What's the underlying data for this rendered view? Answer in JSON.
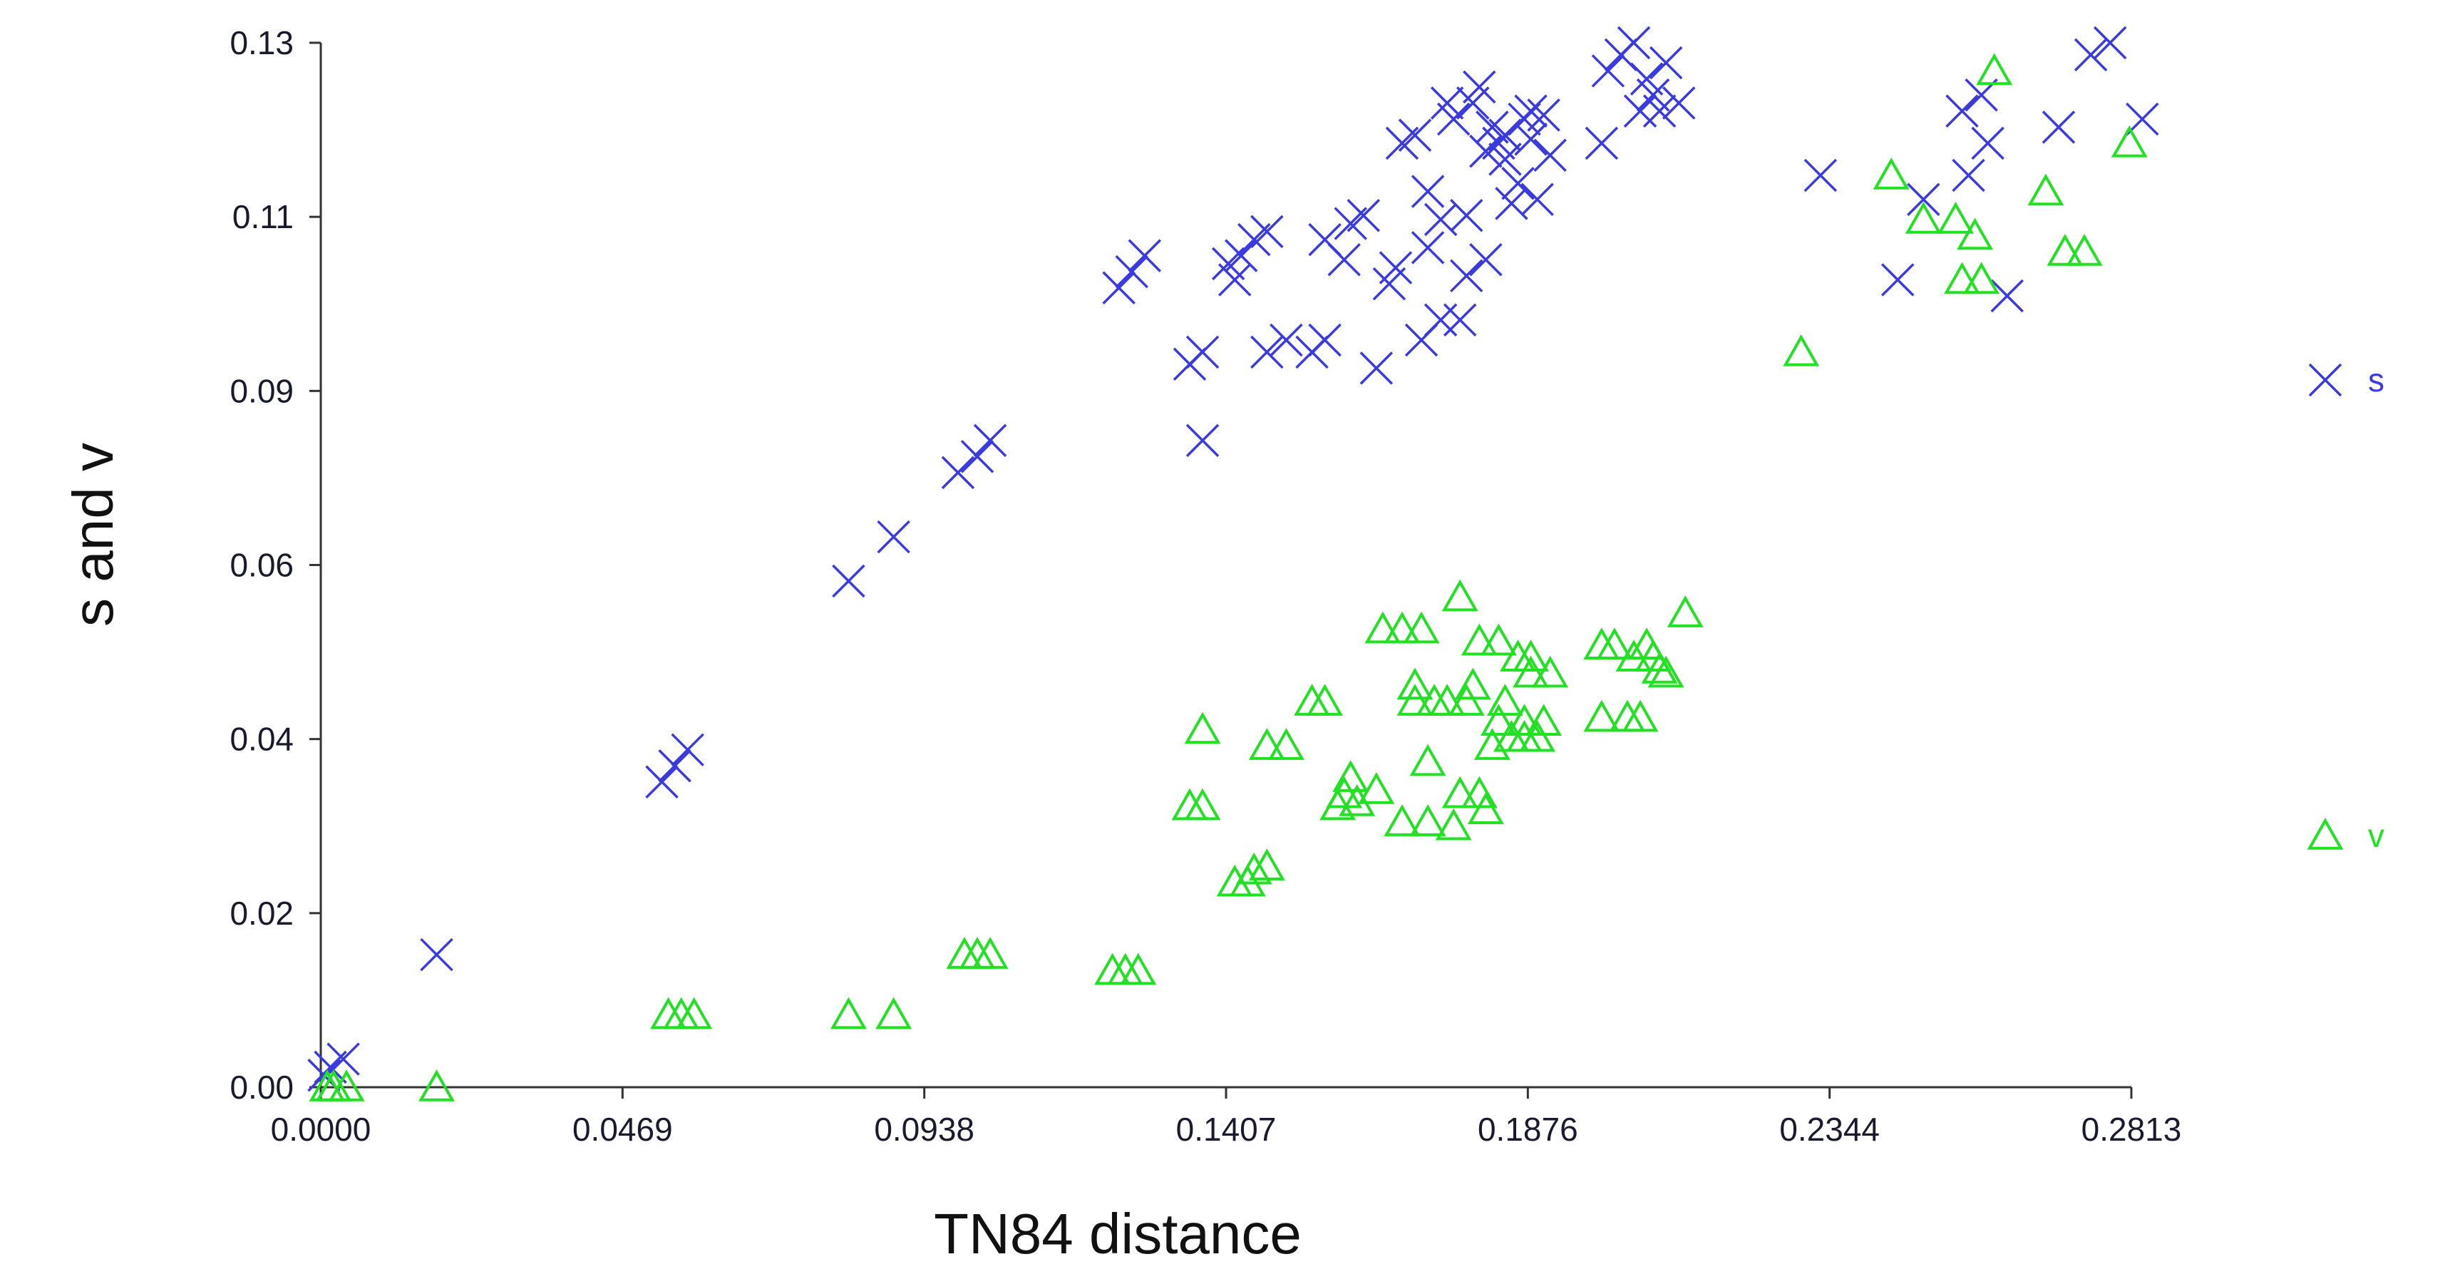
{
  "chart_data": {
    "type": "scatter",
    "title": "",
    "xlabel": "TN84 distance",
    "ylabel": "s and v",
    "xlim": [
      0,
      0.2813
    ],
    "ylim": [
      0,
      0.13
    ],
    "x_ticks": [
      "0.0000",
      "0.0469",
      "0.0938",
      "0.1407",
      "0.1876",
      "0.2344",
      "0.2813"
    ],
    "y_ticks": [
      "0.00",
      "0.02",
      "0.04",
      "0.06",
      "0.09",
      "0.11",
      "0.13"
    ],
    "grid": false,
    "legend": "right",
    "series": [
      {
        "name": "s",
        "marker": "x",
        "color": "#3a3ae0",
        "points": [
          [
            0.0005,
            0.0015
          ],
          [
            0.0015,
            0.0025
          ],
          [
            0.0035,
            0.0035
          ],
          [
            0.018,
            0.0165
          ],
          [
            0.053,
            0.038
          ],
          [
            0.055,
            0.04
          ],
          [
            0.057,
            0.042
          ],
          [
            0.082,
            0.063
          ],
          [
            0.089,
            0.0685
          ],
          [
            0.099,
            0.0765
          ],
          [
            0.102,
            0.0785
          ],
          [
            0.104,
            0.0805
          ],
          [
            0.124,
            0.0995
          ],
          [
            0.126,
            0.1015
          ],
          [
            0.128,
            0.1035
          ],
          [
            0.135,
            0.09
          ],
          [
            0.137,
            0.0915
          ],
          [
            0.137,
            0.0805
          ],
          [
            0.141,
            0.1025
          ],
          [
            0.142,
            0.1005
          ],
          [
            0.143,
            0.1035
          ],
          [
            0.145,
            0.1055
          ],
          [
            0.147,
            0.1065
          ],
          [
            0.147,
            0.0915
          ],
          [
            0.15,
            0.093
          ],
          [
            0.154,
            0.0915
          ],
          [
            0.156,
            0.093
          ],
          [
            0.156,
            0.1055
          ],
          [
            0.159,
            0.103
          ],
          [
            0.16,
            0.1075
          ],
          [
            0.162,
            0.1085
          ],
          [
            0.164,
            0.0895
          ],
          [
            0.166,
            0.1
          ],
          [
            0.167,
            0.102
          ],
          [
            0.168,
            0.1175
          ],
          [
            0.17,
            0.1185
          ],
          [
            0.171,
            0.093
          ],
          [
            0.172,
            0.1045
          ],
          [
            0.172,
            0.1115
          ],
          [
            0.174,
            0.0955
          ],
          [
            0.174,
            0.108
          ],
          [
            0.175,
            0.1225
          ],
          [
            0.176,
            0.1205
          ],
          [
            0.177,
            0.0955
          ],
          [
            0.178,
            0.101
          ],
          [
            0.178,
            0.1085
          ],
          [
            0.179,
            0.1225
          ],
          [
            0.18,
            0.1245
          ],
          [
            0.181,
            0.103
          ],
          [
            0.181,
            0.1165
          ],
          [
            0.182,
            0.1195
          ],
          [
            0.183,
            0.1175
          ],
          [
            0.184,
            0.1155
          ],
          [
            0.184,
            0.1185
          ],
          [
            0.185,
            0.11
          ],
          [
            0.186,
            0.1125
          ],
          [
            0.187,
            0.1205
          ],
          [
            0.188,
            0.118
          ],
          [
            0.188,
            0.1215
          ],
          [
            0.189,
            0.1105
          ],
          [
            0.19,
            0.121
          ],
          [
            0.191,
            0.116
          ],
          [
            0.199,
            0.1175
          ],
          [
            0.2,
            0.1265
          ],
          [
            0.202,
            0.1285
          ],
          [
            0.204,
            0.13
          ],
          [
            0.205,
            0.1215
          ],
          [
            0.206,
            0.1255
          ],
          [
            0.207,
            0.1235
          ],
          [
            0.208,
            0.1215
          ],
          [
            0.209,
            0.1275
          ],
          [
            0.211,
            0.1225
          ],
          [
            0.233,
            0.1135
          ],
          [
            0.245,
            0.1005
          ],
          [
            0.249,
            0.1105
          ],
          [
            0.255,
            0.1215
          ],
          [
            0.256,
            0.1135
          ],
          [
            0.258,
            0.1235
          ],
          [
            0.259,
            0.1175
          ],
          [
            0.262,
            0.0985
          ],
          [
            0.27,
            0.1195
          ],
          [
            0.275,
            0.1285
          ],
          [
            0.278,
            0.13
          ],
          [
            0.283,
            0.1205
          ]
        ]
      },
      {
        "name": "v",
        "marker": "triangle",
        "color": "#22e022",
        "points": [
          [
            0.001,
            0.0
          ],
          [
            0.002,
            0.0
          ],
          [
            0.004,
            0.0
          ],
          [
            0.018,
            0.0
          ],
          [
            0.054,
            0.009
          ],
          [
            0.056,
            0.009
          ],
          [
            0.058,
            0.009
          ],
          [
            0.082,
            0.009
          ],
          [
            0.089,
            0.009
          ],
          [
            0.1,
            0.0165
          ],
          [
            0.102,
            0.0165
          ],
          [
            0.104,
            0.0165
          ],
          [
            0.123,
            0.0145
          ],
          [
            0.125,
            0.0145
          ],
          [
            0.127,
            0.0145
          ],
          [
            0.135,
            0.035
          ],
          [
            0.137,
            0.035
          ],
          [
            0.137,
            0.0445
          ],
          [
            0.142,
            0.0255
          ],
          [
            0.144,
            0.0255
          ],
          [
            0.145,
            0.027
          ],
          [
            0.147,
            0.0275
          ],
          [
            0.147,
            0.0425
          ],
          [
            0.15,
            0.0425
          ],
          [
            0.154,
            0.048
          ],
          [
            0.156,
            0.048
          ],
          [
            0.158,
            0.035
          ],
          [
            0.159,
            0.0365
          ],
          [
            0.16,
            0.0385
          ],
          [
            0.161,
            0.0355
          ],
          [
            0.164,
            0.037
          ],
          [
            0.165,
            0.057
          ],
          [
            0.168,
            0.057
          ],
          [
            0.168,
            0.033
          ],
          [
            0.17,
            0.048
          ],
          [
            0.17,
            0.05
          ],
          [
            0.171,
            0.057
          ],
          [
            0.172,
            0.0405
          ],
          [
            0.172,
            0.033
          ],
          [
            0.173,
            0.048
          ],
          [
            0.175,
            0.048
          ],
          [
            0.176,
            0.0325
          ],
          [
            0.177,
            0.0365
          ],
          [
            0.177,
            0.061
          ],
          [
            0.178,
            0.048
          ],
          [
            0.179,
            0.05
          ],
          [
            0.18,
            0.0365
          ],
          [
            0.18,
            0.0555
          ],
          [
            0.181,
            0.0345
          ],
          [
            0.182,
            0.0425
          ],
          [
            0.183,
            0.0555
          ],
          [
            0.183,
            0.0455
          ],
          [
            0.184,
            0.048
          ],
          [
            0.185,
            0.0435
          ],
          [
            0.186,
            0.0535
          ],
          [
            0.187,
            0.0435
          ],
          [
            0.187,
            0.0455
          ],
          [
            0.188,
            0.0515
          ],
          [
            0.188,
            0.0535
          ],
          [
            0.189,
            0.0435
          ],
          [
            0.19,
            0.0455
          ],
          [
            0.191,
            0.0515
          ],
          [
            0.199,
            0.055
          ],
          [
            0.199,
            0.046
          ],
          [
            0.201,
            0.055
          ],
          [
            0.203,
            0.046
          ],
          [
            0.204,
            0.0535
          ],
          [
            0.205,
            0.046
          ],
          [
            0.206,
            0.055
          ],
          [
            0.207,
            0.0535
          ],
          [
            0.208,
            0.052
          ],
          [
            0.209,
            0.0515
          ],
          [
            0.212,
            0.059
          ],
          [
            0.23,
            0.0915
          ],
          [
            0.244,
            0.1135
          ],
          [
            0.249,
            0.108
          ],
          [
            0.254,
            0.108
          ],
          [
            0.255,
            0.1005
          ],
          [
            0.257,
            0.106
          ],
          [
            0.258,
            0.1005
          ],
          [
            0.26,
            0.1265
          ],
          [
            0.268,
            0.1115
          ],
          [
            0.271,
            0.104
          ],
          [
            0.274,
            0.104
          ],
          [
            0.281,
            0.1175
          ]
        ]
      }
    ]
  }
}
